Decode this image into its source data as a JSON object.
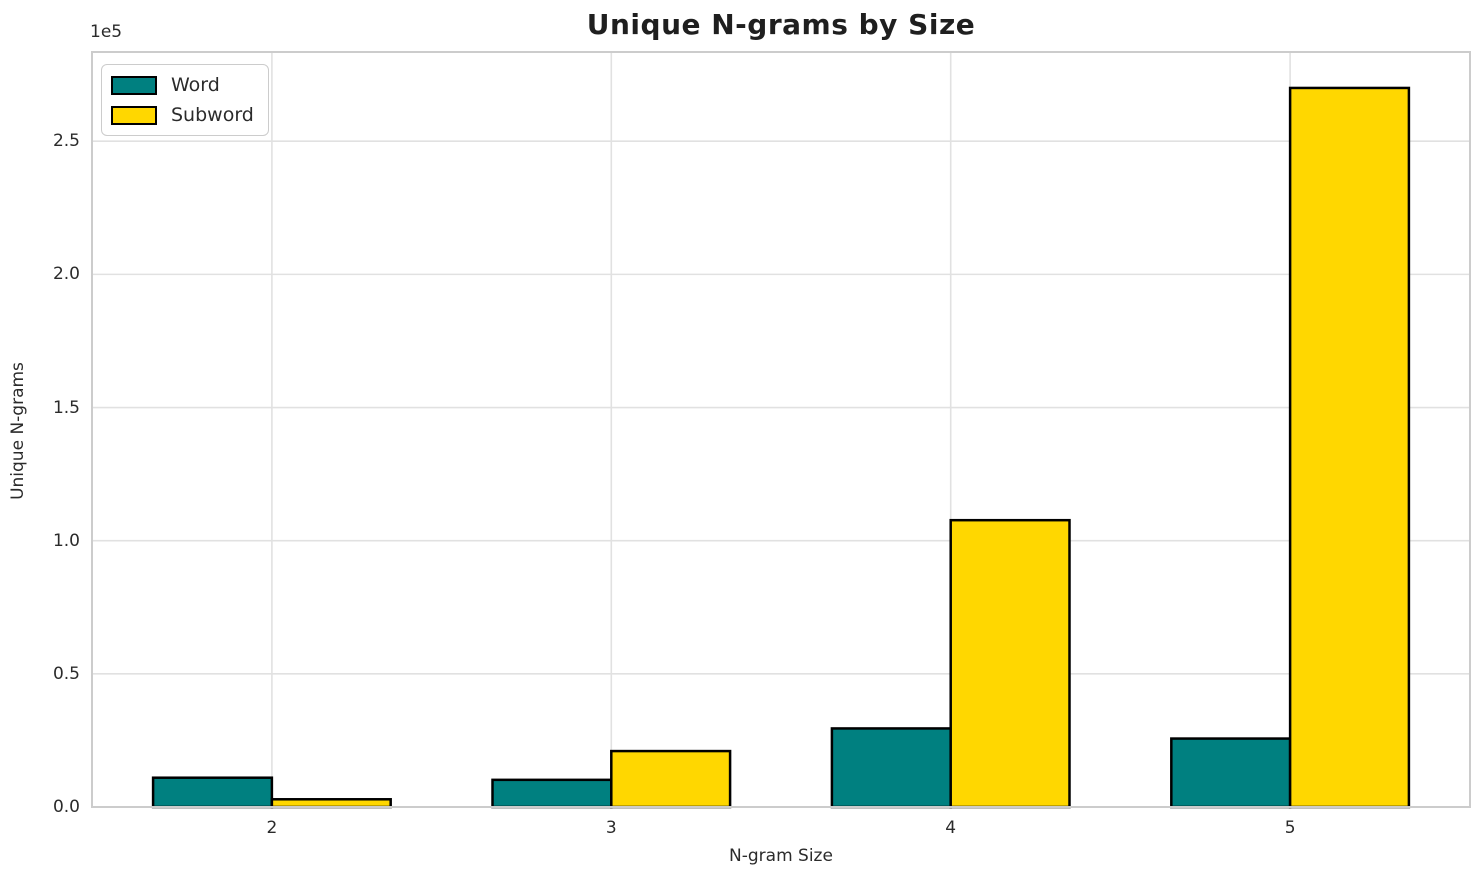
{
  "title": "Unique N-grams by Size",
  "chart_data": {
    "type": "bar",
    "categories": [
      2,
      3,
      4,
      5
    ],
    "series": [
      {
        "name": "Word",
        "color": "#008080",
        "values": [
          11000,
          10200,
          29500,
          25700
        ]
      },
      {
        "name": "Subword",
        "color": "#FFD700",
        "values": [
          2900,
          21000,
          107700,
          270000
        ]
      }
    ],
    "title": "Unique N-grams by Size",
    "xlabel": "N-gram Size",
    "ylabel": "Unique N-grams",
    "offset_text": "1e5",
    "xtick_labels": [
      "2",
      "3",
      "4",
      "5"
    ],
    "yticks": [
      0,
      50000,
      100000,
      150000,
      200000,
      250000
    ],
    "ytick_labels": [
      "0.0",
      "0.5",
      "1.0",
      "1.5",
      "2.0",
      "2.5"
    ],
    "ylim": [
      0,
      283500
    ],
    "xlim": [
      1.47,
      5.53
    ],
    "bar_width": 0.35,
    "bar_edge_color": "#000000",
    "grid": true,
    "grid_color": "#e1e1e1",
    "spine_color": "#cccccc",
    "legend_position": "upper-left",
    "legend_entries": [
      "Word",
      "Subword"
    ]
  }
}
